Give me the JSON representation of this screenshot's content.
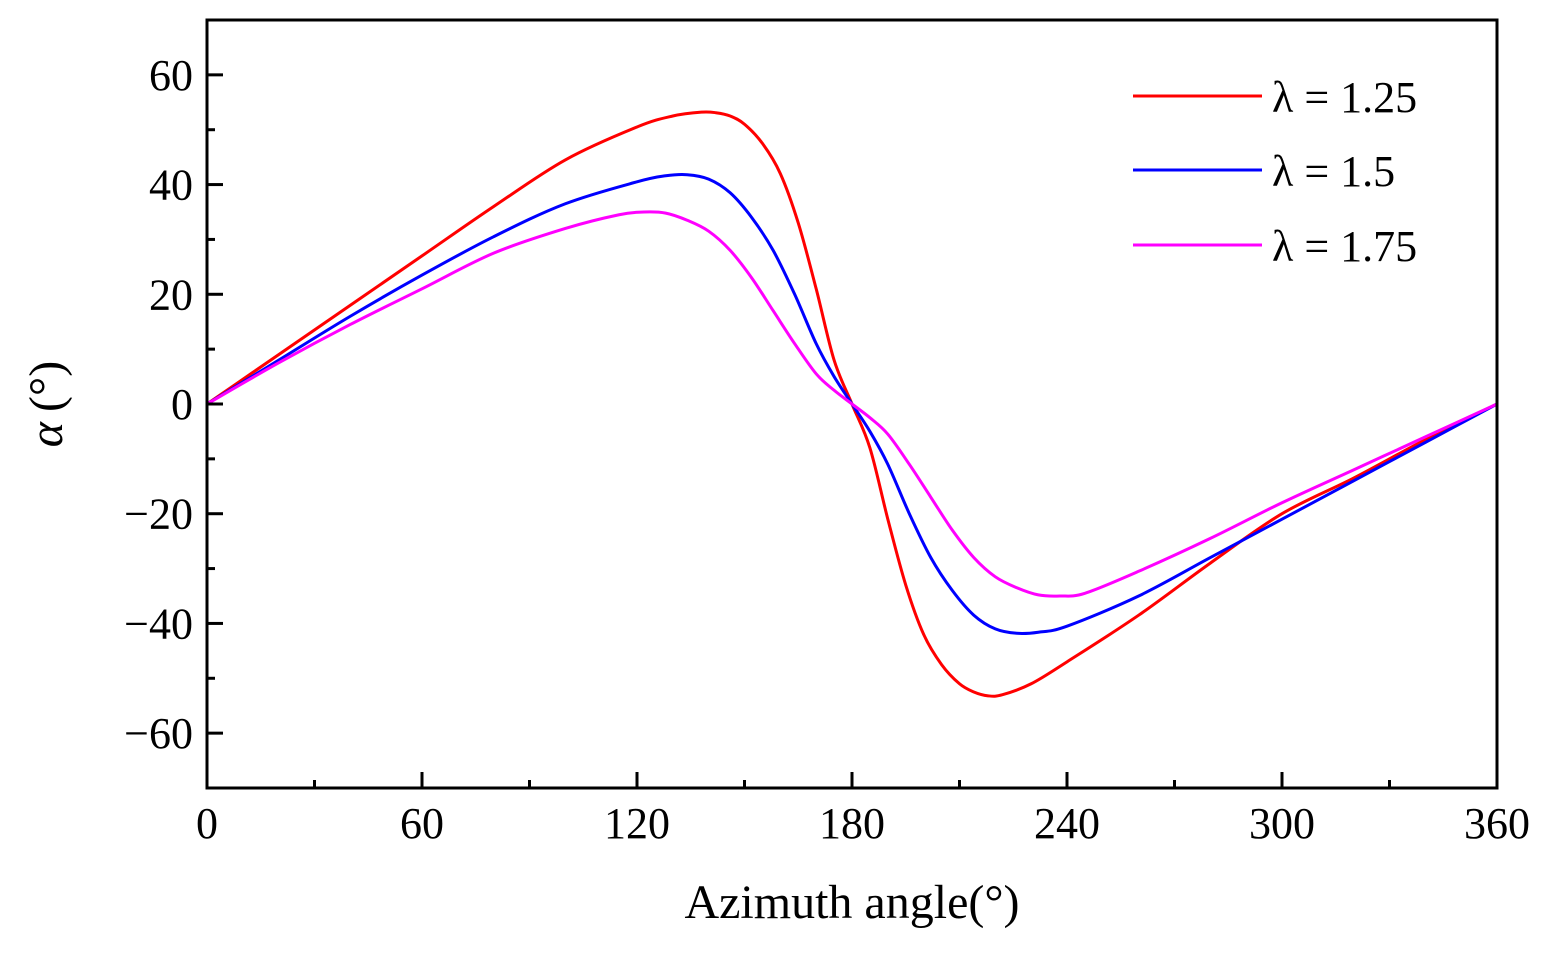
{
  "chart_data": {
    "type": "line",
    "title": "",
    "xlabel": "Azimuth angle(°)",
    "ylabel": "α (°)",
    "ylabel_symbol": "α",
    "ylabel_unit": "(°)",
    "xlim": [
      0,
      360
    ],
    "ylim": [
      -70,
      70
    ],
    "x_ticks": [
      0,
      60,
      120,
      180,
      240,
      300,
      360
    ],
    "y_ticks": [
      60,
      40,
      20,
      0,
      -20,
      -40,
      -60
    ],
    "x_tick_labels": [
      "0",
      "60",
      "120",
      "180",
      "240",
      "300",
      "360"
    ],
    "y_tick_labels": [
      "60",
      "40",
      "20",
      "0",
      "−20",
      "−40",
      "−60"
    ],
    "grid": false,
    "legend_position": "top-right",
    "series": [
      {
        "name": "λ = 1.25",
        "color": "#ff0000",
        "x": [
          0,
          20,
          40,
          60,
          80,
          100,
          120,
          130,
          138,
          142,
          146,
          150,
          155,
          160,
          165,
          170,
          175,
          180,
          185,
          190,
          195,
          200,
          205,
          210,
          214,
          218,
          222,
          230,
          240,
          260,
          280,
          300,
          320,
          340,
          360
        ],
        "y": [
          0,
          9,
          18,
          27,
          36,
          44.5,
          50.5,
          52.5,
          53.2,
          53.1,
          52.5,
          51,
          47.5,
          42,
          33,
          21,
          8,
          0,
          -8,
          -21,
          -33,
          -42,
          -47.5,
          -51,
          -52.5,
          -53.2,
          -53,
          -51,
          -47,
          -38.5,
          -29,
          -20,
          -13.5,
          -6.5,
          0
        ]
      },
      {
        "name": "λ = 1.5",
        "color": "#0000ff",
        "x": [
          0,
          20,
          40,
          60,
          80,
          100,
          120,
          128,
          134,
          140,
          146,
          152,
          158,
          164,
          170,
          175,
          180,
          185,
          190,
          196,
          202,
          208,
          214,
          220,
          226,
          232,
          240,
          260,
          280,
          300,
          320,
          340,
          360
        ],
        "y": [
          0,
          8,
          16,
          23.5,
          30.5,
          36.5,
          40.5,
          41.6,
          41.8,
          41,
          38.5,
          34,
          28,
          20,
          11,
          5,
          0,
          -5,
          -11,
          -20,
          -28,
          -34,
          -38.5,
          -41,
          -41.8,
          -41.6,
          -40.5,
          -35,
          -28,
          -21,
          -14,
          -7,
          0
        ]
      },
      {
        "name": "λ = 1.75",
        "color": "#ff00ff",
        "x": [
          0,
          20,
          40,
          60,
          80,
          100,
          115,
          122,
          128,
          134,
          140,
          146,
          152,
          158,
          164,
          170,
          175,
          180,
          185,
          190,
          196,
          202,
          208,
          214,
          220,
          226,
          232,
          238,
          245,
          260,
          280,
          300,
          320,
          340,
          360
        ],
        "y": [
          0,
          7.5,
          14.5,
          21,
          27.5,
          32,
          34.5,
          35,
          34.8,
          33.5,
          31.5,
          28,
          23,
          17,
          11,
          5.5,
          2.5,
          0,
          -2.5,
          -5.5,
          -11,
          -17,
          -23,
          -28,
          -31.5,
          -33.5,
          -34.8,
          -35,
          -34.5,
          -30.5,
          -24.5,
          -18,
          -12,
          -6,
          0
        ]
      }
    ]
  }
}
